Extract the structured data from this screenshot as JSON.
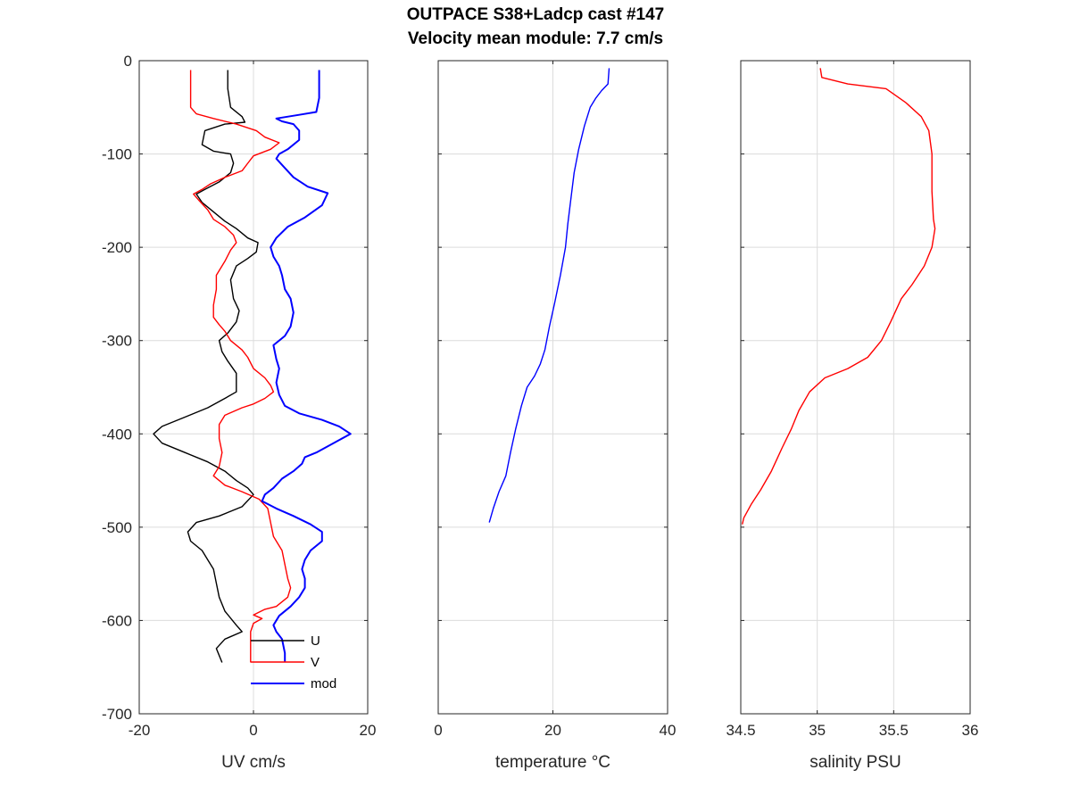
{
  "figure": {
    "title_line_1": "OUTPACE S38+Ladcp cast #147",
    "title_line_2": "Velocity mean module:  7.7 cm/s"
  },
  "chart_data": [
    {
      "type": "line",
      "xlabel": "UV cm/s",
      "ylabel": "",
      "xlim": [
        -20,
        20
      ],
      "ylim": [
        -700,
        0
      ],
      "xticks": [
        -20,
        0,
        20
      ],
      "yticks": [
        0,
        -100,
        -200,
        -300,
        -400,
        -500,
        -600,
        -700
      ],
      "grid": true,
      "legend": {
        "placement": "bottom-right",
        "entries": [
          "U",
          "V",
          "mod"
        ]
      },
      "series": [
        {
          "name": "U",
          "color": "#000000",
          "points": [
            [
              -4.5,
              -10
            ],
            [
              -4.5,
              -30
            ],
            [
              -4,
              -50
            ],
            [
              -2,
              -60
            ],
            [
              -1.5,
              -66
            ],
            [
              -5,
              -68
            ],
            [
              -8.5,
              -75
            ],
            [
              -9,
              -90
            ],
            [
              -7,
              -97
            ],
            [
              -4,
              -100
            ],
            [
              -3.5,
              -110
            ],
            [
              -4,
              -120
            ],
            [
              -6,
              -130
            ],
            [
              -8.5,
              -138
            ],
            [
              -10,
              -143
            ],
            [
              -9,
              -152
            ],
            [
              -7,
              -162
            ],
            [
              -5,
              -172
            ],
            [
              -3,
              -180
            ],
            [
              -1,
              -190
            ],
            [
              0.8,
              -195
            ],
            [
              0.5,
              -205
            ],
            [
              -1,
              -212
            ],
            [
              -3,
              -220
            ],
            [
              -4,
              -235
            ],
            [
              -3.5,
              -255
            ],
            [
              -2.5,
              -268
            ],
            [
              -3,
              -280
            ],
            [
              -4.5,
              -292
            ],
            [
              -6,
              -300
            ],
            [
              -5.5,
              -312
            ],
            [
              -4.5,
              -322
            ],
            [
              -3,
              -335
            ],
            [
              -3,
              -345
            ],
            [
              -3,
              -355
            ],
            [
              -5,
              -362
            ],
            [
              -8,
              -372
            ],
            [
              -12,
              -382
            ],
            [
              -16,
              -392
            ],
            [
              -17.5,
              -400
            ],
            [
              -16,
              -410
            ],
            [
              -12,
              -420
            ],
            [
              -8,
              -430
            ],
            [
              -5,
              -440
            ],
            [
              -3,
              -450
            ],
            [
              -1,
              -458
            ],
            [
              0,
              -465
            ],
            [
              -2,
              -478
            ],
            [
              -6,
              -488
            ],
            [
              -10,
              -495
            ],
            [
              -11.5,
              -505
            ],
            [
              -11,
              -515
            ],
            [
              -9,
              -525
            ],
            [
              -8,
              -535
            ],
            [
              -7,
              -545
            ],
            [
              -6.5,
              -560
            ],
            [
              -6,
              -575
            ],
            [
              -5,
              -590
            ],
            [
              -3,
              -605
            ],
            [
              -2,
              -612
            ],
            [
              -5,
              -620
            ],
            [
              -6.5,
              -630
            ],
            [
              -5.5,
              -645
            ]
          ]
        },
        {
          "name": "V",
          "color": "#ff0000",
          "points": [
            [
              -11,
              -10
            ],
            [
              -11,
              -30
            ],
            [
              -11,
              -50
            ],
            [
              -10,
              -57
            ],
            [
              -7,
              -62
            ],
            [
              -3,
              -68
            ],
            [
              0.5,
              -75
            ],
            [
              2,
              -82
            ],
            [
              4.5,
              -88
            ],
            [
              3,
              -95
            ],
            [
              0,
              -102
            ],
            [
              -1,
              -110
            ],
            [
              -2,
              -118
            ],
            [
              -5,
              -125
            ],
            [
              -7.5,
              -132
            ],
            [
              -9,
              -138
            ],
            [
              -10.5,
              -143
            ],
            [
              -9.5,
              -150
            ],
            [
              -8,
              -160
            ],
            [
              -7,
              -170
            ],
            [
              -5,
              -178
            ],
            [
              -3.5,
              -187
            ],
            [
              -3,
              -195
            ],
            [
              -4,
              -203
            ],
            [
              -5,
              -215
            ],
            [
              -6.5,
              -230
            ],
            [
              -6.5,
              -245
            ],
            [
              -7,
              -262
            ],
            [
              -7,
              -275
            ],
            [
              -6,
              -283
            ],
            [
              -5,
              -290
            ],
            [
              -4,
              -300
            ],
            [
              -2,
              -310
            ],
            [
              -1,
              -318
            ],
            [
              0,
              -330
            ],
            [
              2,
              -340
            ],
            [
              3,
              -348
            ],
            [
              3.5,
              -355
            ],
            [
              2,
              -362
            ],
            [
              0,
              -368
            ],
            [
              -2,
              -372
            ],
            [
              -5,
              -380
            ],
            [
              -6,
              -390
            ],
            [
              -6,
              -405
            ],
            [
              -5.5,
              -420
            ],
            [
              -6,
              -435
            ],
            [
              -7,
              -445
            ],
            [
              -5,
              -455
            ],
            [
              -2,
              -462
            ],
            [
              1,
              -470
            ],
            [
              2.5,
              -480
            ],
            [
              3,
              -495
            ],
            [
              3.5,
              -510
            ],
            [
              5,
              -525
            ],
            [
              5.5,
              -540
            ],
            [
              6,
              -555
            ],
            [
              6.5,
              -565
            ],
            [
              6,
              -575
            ],
            [
              4,
              -585
            ],
            [
              2,
              -588
            ],
            [
              0,
              -594
            ],
            [
              1.5,
              -598
            ],
            [
              0,
              -603
            ],
            [
              -0.5,
              -612
            ],
            [
              -0.5,
              -630
            ],
            [
              -0.5,
              -645
            ]
          ]
        },
        {
          "name": "mod",
          "color": "#0000ff",
          "points": [
            [
              11.5,
              -10
            ],
            [
              11.5,
              -20
            ],
            [
              11.5,
              -40
            ],
            [
              11,
              -55
            ],
            [
              8,
              -58
            ],
            [
              4,
              -62
            ],
            [
              5,
              -65
            ],
            [
              7,
              -68
            ],
            [
              8,
              -75
            ],
            [
              8,
              -85
            ],
            [
              6,
              -95
            ],
            [
              4.5,
              -100
            ],
            [
              4,
              -105
            ],
            [
              5.5,
              -115
            ],
            [
              7,
              -125
            ],
            [
              9.5,
              -135
            ],
            [
              13,
              -142
            ],
            [
              12,
              -155
            ],
            [
              9,
              -168
            ],
            [
              6,
              -178
            ],
            [
              4,
              -190
            ],
            [
              3,
              -200
            ],
            [
              3.5,
              -210
            ],
            [
              4.5,
              -220
            ],
            [
              5,
              -230
            ],
            [
              5.5,
              -245
            ],
            [
              6.5,
              -255
            ],
            [
              7,
              -270
            ],
            [
              6.5,
              -285
            ],
            [
              5.5,
              -295
            ],
            [
              3.5,
              -305
            ],
            [
              4,
              -320
            ],
            [
              4.5,
              -330
            ],
            [
              4,
              -345
            ],
            [
              4.5,
              -358
            ],
            [
              5.5,
              -370
            ],
            [
              8,
              -378
            ],
            [
              12,
              -385
            ],
            [
              15,
              -392
            ],
            [
              17,
              -400
            ],
            [
              14,
              -410
            ],
            [
              11,
              -420
            ],
            [
              9,
              -425
            ],
            [
              8.5,
              -432
            ],
            [
              7,
              -440
            ],
            [
              5,
              -448
            ],
            [
              3.5,
              -458
            ],
            [
              2,
              -465
            ],
            [
              1.5,
              -472
            ],
            [
              4,
              -480
            ],
            [
              7,
              -488
            ],
            [
              10,
              -497
            ],
            [
              12,
              -505
            ],
            [
              12,
              -515
            ],
            [
              10,
              -525
            ],
            [
              9,
              -535
            ],
            [
              8.5,
              -545
            ],
            [
              9,
              -555
            ],
            [
              9,
              -565
            ],
            [
              8,
              -575
            ],
            [
              6.5,
              -585
            ],
            [
              4.5,
              -595
            ],
            [
              3.5,
              -605
            ],
            [
              4,
              -612
            ],
            [
              5,
              -620
            ],
            [
              5.5,
              -635
            ],
            [
              5.5,
              -645
            ]
          ]
        }
      ]
    },
    {
      "type": "line",
      "xlabel": "temperature °C",
      "ylabel": "",
      "xlim": [
        0,
        40
      ],
      "ylim": [
        -700,
        0
      ],
      "xticks": [
        0,
        20,
        40
      ],
      "yticks": [
        0,
        -100,
        -200,
        -300,
        -400,
        -500,
        -600,
        -700
      ],
      "grid": true,
      "series": [
        {
          "color": "#0000ff",
          "points": [
            [
              29.8,
              -8
            ],
            [
              29.6,
              -25
            ],
            [
              28.5,
              -32
            ],
            [
              27.5,
              -40
            ],
            [
              26.5,
              -50
            ],
            [
              25.5,
              -70
            ],
            [
              24.5,
              -95
            ],
            [
              23.7,
              -120
            ],
            [
              23.1,
              -150
            ],
            [
              22.6,
              -175
            ],
            [
              22.2,
              -200
            ],
            [
              21.3,
              -230
            ],
            [
              20.3,
              -260
            ],
            [
              19.4,
              -285
            ],
            [
              18.6,
              -310
            ],
            [
              17.8,
              -325
            ],
            [
              16.8,
              -338
            ],
            [
              15.5,
              -350
            ],
            [
              14.5,
              -370
            ],
            [
              13.5,
              -395
            ],
            [
              12.6,
              -420
            ],
            [
              11.8,
              -445
            ],
            [
              10.6,
              -462
            ],
            [
              9.6,
              -480
            ],
            [
              8.9,
              -495
            ]
          ]
        }
      ]
    },
    {
      "type": "line",
      "xlabel": "salinity PSU",
      "ylabel": "",
      "xlim": [
        34.5,
        36
      ],
      "ylim": [
        -700,
        0
      ],
      "xticks": [
        34.5,
        35,
        35.5,
        36
      ],
      "yticks": [
        0,
        -100,
        -200,
        -300,
        -400,
        -500,
        -600,
        -700
      ],
      "grid": true,
      "series": [
        {
          "color": "#ff0000",
          "points": [
            [
              35.02,
              -8
            ],
            [
              35.03,
              -18
            ],
            [
              35.2,
              -25
            ],
            [
              35.45,
              -30
            ],
            [
              35.58,
              -45
            ],
            [
              35.68,
              -60
            ],
            [
              35.73,
              -75
            ],
            [
              35.75,
              -100
            ],
            [
              35.75,
              -140
            ],
            [
              35.76,
              -170
            ],
            [
              35.77,
              -180
            ],
            [
              35.75,
              -200
            ],
            [
              35.7,
              -220
            ],
            [
              35.62,
              -240
            ],
            [
              35.55,
              -255
            ],
            [
              35.48,
              -280
            ],
            [
              35.42,
              -300
            ],
            [
              35.33,
              -318
            ],
            [
              35.2,
              -330
            ],
            [
              35.05,
              -340
            ],
            [
              34.95,
              -355
            ],
            [
              34.88,
              -375
            ],
            [
              34.83,
              -395
            ],
            [
              34.77,
              -415
            ],
            [
              34.7,
              -440
            ],
            [
              34.63,
              -460
            ],
            [
              34.57,
              -475
            ],
            [
              34.52,
              -490
            ],
            [
              34.51,
              -497
            ]
          ]
        }
      ]
    }
  ]
}
